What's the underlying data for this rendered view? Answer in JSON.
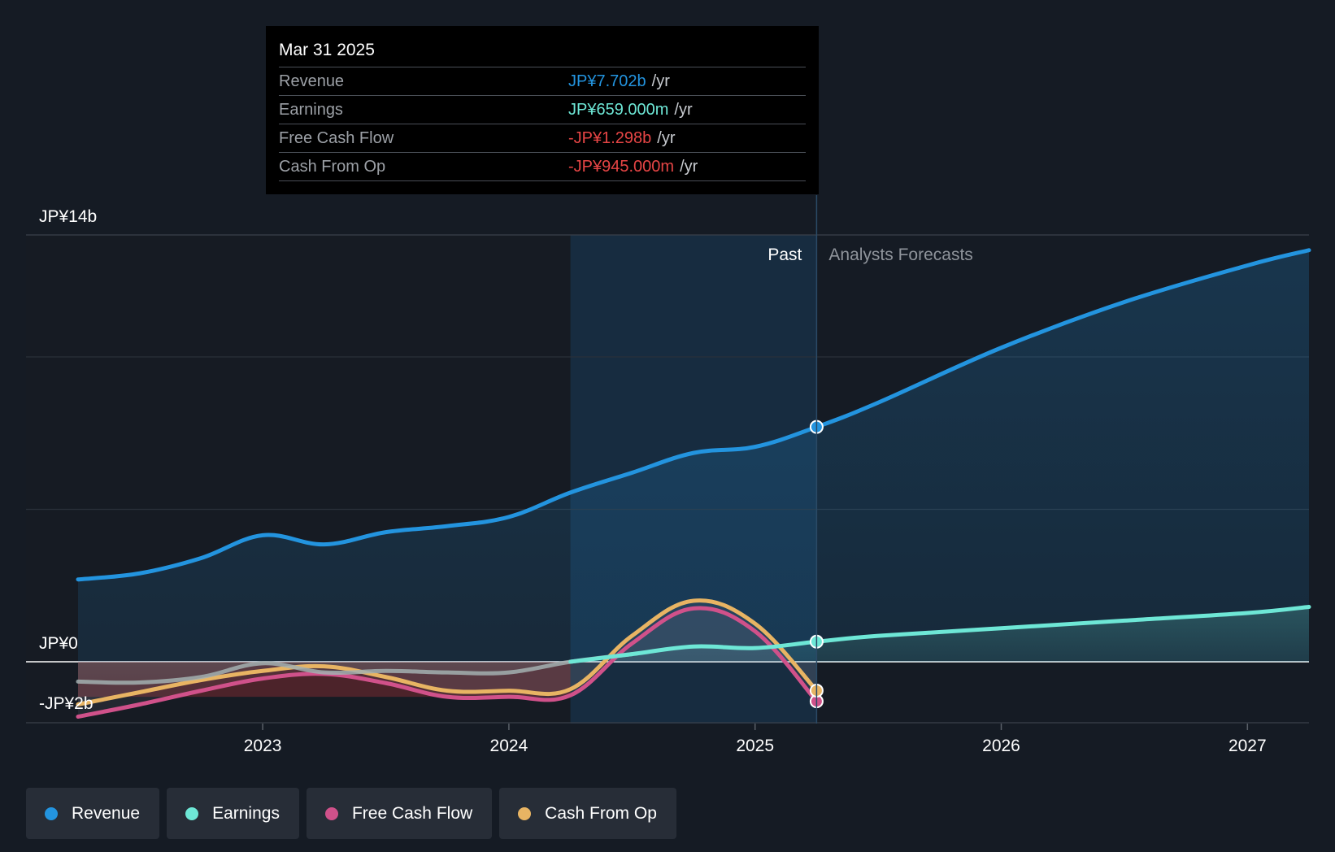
{
  "tooltip": {
    "date": "Mar 31 2025",
    "unit": "/yr",
    "rows": [
      {
        "label": "Revenue",
        "value": "JP¥7.702b",
        "color": "#2394df"
      },
      {
        "label": "Earnings",
        "value": "JP¥659.000m",
        "color": "#6ee7d6"
      },
      {
        "label": "Free Cash Flow",
        "value": "-JP¥1.298b",
        "color": "#e64545"
      },
      {
        "label": "Cash From Op",
        "value": "-JP¥945.000m",
        "color": "#e64545"
      }
    ]
  },
  "chart_data": {
    "type": "line",
    "title": "",
    "xlabel": "",
    "ylabel": "",
    "y_axis_labels": {
      "top": "JP¥14b",
      "zero": "JP¥0",
      "bottom": "-JP¥2b"
    },
    "ylim": [
      -2,
      14
    ],
    "xlim": [
      2022.25,
      2027.25
    ],
    "x_ticks": [
      2023,
      2024,
      2025,
      2026,
      2027
    ],
    "x_tick_labels": [
      "2023",
      "2024",
      "2025",
      "2026",
      "2027"
    ],
    "gridlines_y": [
      14,
      10,
      5,
      0,
      -2
    ],
    "past_label": "Past",
    "forecast_label": "Analysts Forecasts",
    "divider_x": 2025.25,
    "highlight_range": [
      2024.25,
      2025.25
    ],
    "series": [
      {
        "name": "Revenue",
        "color": "#2394df",
        "points": [
          [
            2022.25,
            2.7
          ],
          [
            2022.5,
            2.9
          ],
          [
            2022.75,
            3.4
          ],
          [
            2023.0,
            4.15
          ],
          [
            2023.25,
            3.85
          ],
          [
            2023.5,
            4.25
          ],
          [
            2023.75,
            4.45
          ],
          [
            2024.0,
            4.75
          ],
          [
            2024.25,
            5.55
          ],
          [
            2024.5,
            6.2
          ],
          [
            2024.75,
            6.85
          ],
          [
            2025.0,
            7.05
          ],
          [
            2025.25,
            7.702
          ],
          [
            2025.5,
            8.5
          ],
          [
            2026.0,
            10.3
          ],
          [
            2026.5,
            11.8
          ],
          [
            2027.0,
            13.0
          ],
          [
            2027.25,
            13.5
          ]
        ]
      },
      {
        "name": "Earnings",
        "color": "#6ee7d6",
        "points": [
          [
            2022.25,
            -0.65
          ],
          [
            2022.5,
            -0.68
          ],
          [
            2022.75,
            -0.5
          ],
          [
            2023.0,
            -0.05
          ],
          [
            2023.25,
            -0.35
          ],
          [
            2023.5,
            -0.3
          ],
          [
            2023.75,
            -0.35
          ],
          [
            2024.0,
            -0.35
          ],
          [
            2024.25,
            0.0
          ],
          [
            2024.5,
            0.25
          ],
          [
            2024.75,
            0.5
          ],
          [
            2025.0,
            0.45
          ],
          [
            2025.25,
            0.659
          ],
          [
            2025.5,
            0.85
          ],
          [
            2026.0,
            1.1
          ],
          [
            2026.5,
            1.35
          ],
          [
            2027.0,
            1.6
          ],
          [
            2027.25,
            1.8
          ]
        ]
      },
      {
        "name": "Free Cash Flow",
        "color": "#d0518a",
        "points": [
          [
            2022.25,
            -1.8
          ],
          [
            2022.5,
            -1.4
          ],
          [
            2022.75,
            -0.95
          ],
          [
            2023.0,
            -0.55
          ],
          [
            2023.25,
            -0.4
          ],
          [
            2023.5,
            -0.7
          ],
          [
            2023.75,
            -1.15
          ],
          [
            2024.0,
            -1.15
          ],
          [
            2024.25,
            -1.1
          ],
          [
            2024.5,
            0.6
          ],
          [
            2024.75,
            1.75
          ],
          [
            2025.0,
            1.0
          ],
          [
            2025.25,
            -1.298
          ]
        ]
      },
      {
        "name": "Cash From Op",
        "color": "#e8b463",
        "points": [
          [
            2022.25,
            -1.4
          ],
          [
            2022.5,
            -1.0
          ],
          [
            2022.75,
            -0.6
          ],
          [
            2023.0,
            -0.3
          ],
          [
            2023.25,
            -0.15
          ],
          [
            2023.5,
            -0.5
          ],
          [
            2023.75,
            -0.95
          ],
          [
            2024.0,
            -0.95
          ],
          [
            2024.25,
            -0.9
          ],
          [
            2024.5,
            0.85
          ],
          [
            2024.75,
            2.0
          ],
          [
            2025.0,
            1.25
          ],
          [
            2025.25,
            -0.945
          ]
        ]
      }
    ]
  },
  "legend": [
    {
      "label": "Revenue",
      "color": "#2394df"
    },
    {
      "label": "Earnings",
      "color": "#6ee7d6"
    },
    {
      "label": "Free Cash Flow",
      "color": "#d0518a"
    },
    {
      "label": "Cash From Op",
      "color": "#e8b463"
    }
  ]
}
